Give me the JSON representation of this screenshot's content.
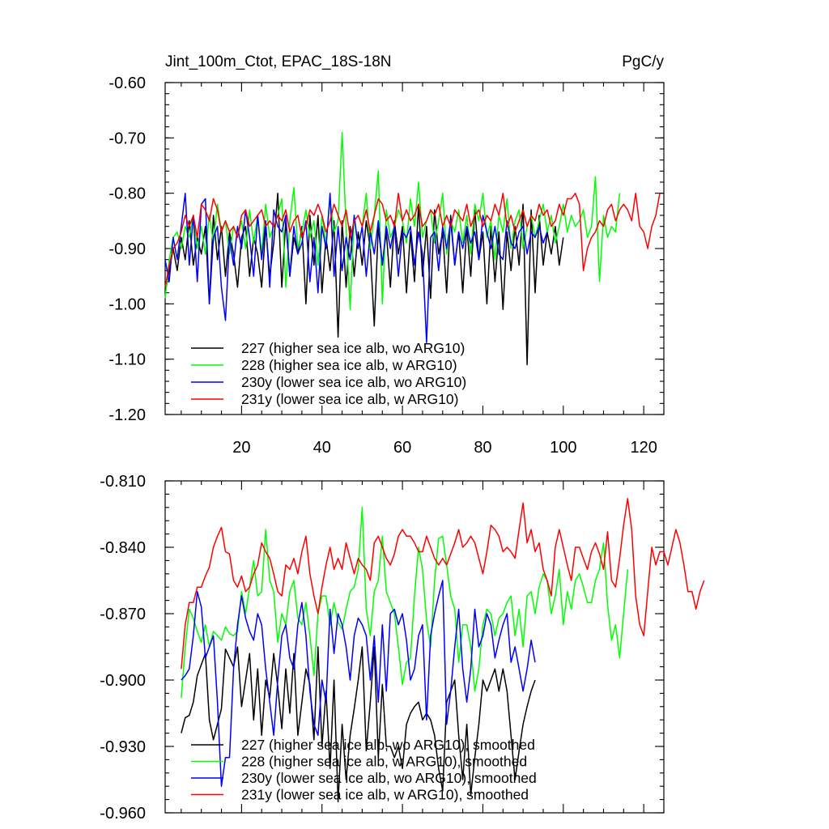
{
  "chart_data": [
    {
      "type": "line",
      "title": "Jint_100m_Ctot, EPAC_18S-18N",
      "units": "PgC/y",
      "xlabel": "",
      "ylabel": "",
      "xlim": [
        1,
        125
      ],
      "ylim": [
        -1.2,
        -0.6
      ],
      "yticks": [
        -0.6,
        -0.7,
        -0.8,
        -0.9,
        -1.0,
        -1.1,
        -1.2
      ],
      "ytick_labels": [
        "-0.60",
        "-0.70",
        "-0.80",
        "-0.90",
        "-1.00",
        "-1.10",
        "-1.20"
      ],
      "xticks": [
        20,
        40,
        60,
        80,
        100,
        120
      ],
      "xtick_labels": [
        "20",
        "40",
        "60",
        "80",
        "100",
        "120"
      ],
      "legend_position": "bottom-left",
      "series": [
        {
          "name": "227 (higher sea ice alb, wo ARG10)",
          "color": "#000000",
          "x_start": 1,
          "values": [
            -0.98,
            -0.94,
            -0.9,
            -0.94,
            -0.88,
            -0.92,
            -0.85,
            -0.93,
            -0.88,
            -0.91,
            -0.86,
            -1.0,
            -0.84,
            -0.92,
            -0.86,
            -0.95,
            -0.87,
            -0.91,
            -0.97,
            -0.88,
            -0.86,
            -0.95,
            -0.88,
            -0.91,
            -0.97,
            -0.86,
            -0.95,
            -0.89,
            -0.8,
            -0.97,
            -0.85,
            -0.95,
            -0.88,
            -0.91,
            -0.86,
            -1.0,
            -0.84,
            -0.93,
            -0.84,
            -0.98,
            -0.88,
            -0.94,
            -0.85,
            -1.06,
            -0.85,
            -0.97,
            -0.86,
            -0.95,
            -0.87,
            -0.93,
            -0.85,
            -0.9,
            -1.04,
            -0.86,
            -0.93,
            -0.87,
            -0.97,
            -0.85,
            -0.91,
            -0.86,
            -0.98,
            -0.87,
            -0.96,
            -0.82,
            -0.95,
            -0.86,
            -0.99,
            -0.83,
            -0.91,
            -0.87,
            -0.98,
            -0.84,
            -0.93,
            -0.87,
            -0.98,
            -0.86,
            -0.95,
            -0.83,
            -0.92,
            -0.87,
            -1.0,
            -0.86,
            -0.96,
            -0.87,
            -1.01,
            -0.87,
            -0.94,
            -0.86,
            -0.93,
            -0.82,
            -1.11,
            -0.83,
            -0.98,
            -0.84,
            -0.93,
            -0.87,
            -0.91,
            -0.86,
            -0.93,
            -0.88
          ]
        },
        {
          "name": "228 (higher sea ice alb, w ARG10)",
          "color": "#00ff00",
          "x_start": 1,
          "values": [
            -0.99,
            -0.92,
            -0.88,
            -0.87,
            -0.9,
            -0.86,
            -0.88,
            -0.84,
            -0.9,
            -0.86,
            -0.91,
            -0.84,
            -0.89,
            -0.82,
            -0.87,
            -0.85,
            -0.91,
            -0.86,
            -0.88,
            -0.85,
            -0.9,
            -0.83,
            -0.89,
            -0.84,
            -0.91,
            -0.82,
            -0.88,
            -0.86,
            -0.84,
            -0.81,
            -0.97,
            -0.85,
            -0.79,
            -0.9,
            -0.87,
            -0.83,
            -0.88,
            -0.85,
            -0.93,
            -0.84,
            -0.89,
            -0.81,
            -0.87,
            -0.85,
            -0.69,
            -0.86,
            -1.01,
            -0.84,
            -0.9,
            -0.86,
            -0.8,
            -0.9,
            -0.84,
            -0.76,
            -1.0,
            -0.83,
            -0.88,
            -0.86,
            -0.83,
            -0.85,
            -0.89,
            -0.81,
            -0.86,
            -0.78,
            -0.88,
            -0.85,
            -0.83,
            -0.89,
            -0.85,
            -0.8,
            -0.91,
            -0.85,
            -0.87,
            -0.83,
            -0.89,
            -0.84,
            -0.91,
            -0.82,
            -0.85,
            -0.8,
            -0.88,
            -0.85,
            -0.92,
            -0.84,
            -0.87,
            -0.81,
            -0.9,
            -0.85,
            -0.83,
            -0.9,
            -0.86,
            -0.84,
            -0.88,
            -0.85,
            -0.82,
            -0.87,
            -0.84,
            -0.89,
            -0.86,
            -0.82,
            -0.87,
            -0.84,
            -0.86,
            -0.85,
            -0.83,
            -0.88,
            -0.86,
            -0.77,
            -0.96,
            -0.84,
            -0.88,
            -0.86,
            -0.87,
            -0.8
          ]
        },
        {
          "name": "230y (lower sea ice alb, wo ARG10)",
          "color": "#0000ff",
          "x_start": 1,
          "values": [
            -0.92,
            -0.96,
            -0.88,
            -0.92,
            -0.86,
            -0.8,
            -0.93,
            -0.84,
            -0.96,
            -0.82,
            -0.81,
            -1.0,
            -0.88,
            -0.86,
            -0.97,
            -1.03,
            -0.88,
            -0.93,
            -0.86,
            -0.9,
            -0.83,
            -0.88,
            -0.95,
            -0.84,
            -0.92,
            -0.85,
            -0.97,
            -0.83,
            -0.86,
            -0.87,
            -0.84,
            -0.95,
            -0.86,
            -0.91,
            -0.89,
            -0.85,
            -0.96,
            -0.88,
            -0.98,
            -0.86,
            -0.9,
            -0.8,
            -0.95,
            -0.86,
            -0.94,
            -0.88,
            -0.92,
            -0.84,
            -0.9,
            -0.86,
            -0.95,
            -0.87,
            -0.91,
            -0.85,
            -0.93,
            -0.86,
            -0.9,
            -0.86,
            -0.95,
            -0.87,
            -0.88,
            -0.86,
            -0.93,
            -0.87,
            -0.91,
            -1.07,
            -0.88,
            -0.87,
            -0.94,
            -0.86,
            -0.9,
            -0.85,
            -0.93,
            -0.87,
            -0.9,
            -0.86,
            -0.89,
            -0.87,
            -0.92,
            -0.84,
            -0.87,
            -0.9,
            -0.86,
            -0.91,
            -0.92,
            -0.85,
            -0.89,
            -0.9,
            -0.87,
            -0.86,
            -0.91,
            -0.87,
            -0.88,
            -0.86,
            -0.89,
            -0.87
          ]
        },
        {
          "name": "231y (lower sea ice alb, w ARG10)",
          "color": "#ff0000",
          "x_start": 1,
          "values": [
            -0.97,
            -0.93,
            -0.9,
            -0.89,
            -0.87,
            -0.84,
            -0.86,
            -0.84,
            -0.88,
            -0.82,
            -0.83,
            -0.85,
            -0.81,
            -0.83,
            -0.87,
            -0.85,
            -0.87,
            -0.86,
            -0.88,
            -0.84,
            -0.83,
            -0.86,
            -0.85,
            -0.84,
            -0.83,
            -0.86,
            -0.85,
            -0.86,
            -0.84,
            -0.85,
            -0.83,
            -0.87,
            -0.85,
            -0.84,
            -0.88,
            -0.86,
            -0.83,
            -0.84,
            -0.82,
            -0.84,
            -0.87,
            -0.85,
            -0.82,
            -0.84,
            -0.86,
            -0.83,
            -0.88,
            -0.85,
            -0.84,
            -0.86,
            -0.83,
            -0.87,
            -0.84,
            -0.81,
            -0.82,
            -0.85,
            -0.84,
            -0.86,
            -0.8,
            -0.85,
            -0.83,
            -0.85,
            -0.84,
            -0.82,
            -0.86,
            -0.85,
            -0.83,
            -0.84,
            -0.82,
            -0.86,
            -0.84,
            -0.86,
            -0.83,
            -0.84,
            -0.85,
            -0.82,
            -0.86,
            -0.84,
            -0.83,
            -0.86,
            -0.84,
            -0.85,
            -0.82,
            -0.84,
            -0.8,
            -0.86,
            -0.84,
            -0.87,
            -0.85,
            -0.83,
            -0.86,
            -0.84,
            -0.85,
            -0.82,
            -0.84,
            -0.83,
            -0.86,
            -0.85,
            -0.82,
            -0.84,
            -0.81,
            -0.81,
            -0.8,
            -0.82,
            -0.94,
            -0.9,
            -0.88,
            -0.87,
            -0.85,
            -0.86,
            -0.83,
            -0.82,
            -0.85,
            -0.83,
            -0.82,
            -0.83,
            -0.85,
            -0.8,
            -0.86,
            -0.87,
            -0.9,
            -0.86,
            -0.84,
            -0.8
          ]
        }
      ]
    },
    {
      "type": "line",
      "title": "",
      "xlabel": "",
      "ylabel": "",
      "xlim": [
        1,
        125
      ],
      "ylim": [
        -0.96,
        -0.81
      ],
      "yticks": [
        -0.81,
        -0.84,
        -0.87,
        -0.9,
        -0.93,
        -0.96
      ],
      "ytick_labels": [
        "-0.810",
        "-0.840",
        "-0.870",
        "-0.900",
        "-0.930",
        "-0.960"
      ],
      "xticks": [
        20,
        40,
        60,
        80,
        100,
        120
      ],
      "xtick_labels": [],
      "legend_position": "bottom-left",
      "series": [
        {
          "name": "227 (higher sea ice alb, wo ARG10), smoothed",
          "color": "#000000",
          "x_start": 5,
          "values": [
            -0.924,
            -0.917,
            -0.916,
            -0.91,
            -0.898,
            -0.893,
            -0.888,
            -0.918,
            -0.927,
            -0.92,
            -0.913,
            -0.886,
            -0.89,
            -0.894,
            -0.885,
            -0.912,
            -0.9,
            -0.888,
            -0.918,
            -0.895,
            -0.925,
            -0.9,
            -0.908,
            -0.888,
            -0.903,
            -0.922,
            -0.895,
            -0.915,
            -0.888,
            -0.925,
            -0.91,
            -0.895,
            -0.902,
            -0.927,
            -0.885,
            -0.93,
            -0.905,
            -0.94,
            -0.9,
            -0.955,
            -0.92,
            -0.945,
            -0.925,
            -0.913,
            -0.9,
            -0.885,
            -0.932,
            -0.91,
            -0.885,
            -0.935,
            -0.902,
            -0.93,
            -0.93,
            -0.935,
            -0.93,
            -0.94,
            -0.92,
            -0.915,
            -0.912,
            -0.91,
            -0.918,
            -0.915,
            -0.918,
            -0.925,
            -0.94,
            -0.95,
            -0.91,
            -0.905,
            -0.9,
            -0.925,
            -0.945,
            -0.92,
            -0.952,
            -0.935,
            -0.92,
            -0.9,
            -0.905,
            -0.9,
            -0.895,
            -0.905,
            -0.895,
            -0.905,
            -0.925,
            -0.945,
            -0.932,
            -0.92,
            -0.912,
            -0.905,
            -0.9
          ]
        },
        {
          "name": "228 (higher sea ice alb, w ARG10), smoothed",
          "color": "#00ff00",
          "x_start": 5,
          "values": [
            -0.908,
            -0.885,
            -0.868,
            -0.872,
            -0.878,
            -0.883,
            -0.875,
            -0.885,
            -0.878,
            -0.88,
            -0.882,
            -0.876,
            -0.879,
            -0.88,
            -0.878,
            -0.86,
            -0.87,
            -0.858,
            -0.846,
            -0.862,
            -0.86,
            -0.832,
            -0.855,
            -0.86,
            -0.883,
            -0.87,
            -0.875,
            -0.86,
            -0.855,
            -0.872,
            -0.875,
            -0.865,
            -0.88,
            -0.898,
            -0.87,
            -0.862,
            -0.862,
            -0.875,
            -0.865,
            -0.874,
            -0.877,
            -0.868,
            -0.86,
            -0.858,
            -0.85,
            -0.822,
            -0.868,
            -0.88,
            -0.86,
            -0.855,
            -0.835,
            -0.86,
            -0.865,
            -0.87,
            -0.885,
            -0.902,
            -0.892,
            -0.89,
            -0.862,
            -0.84,
            -0.85,
            -0.873,
            -0.885,
            -0.855,
            -0.836,
            -0.835,
            -0.848,
            -0.862,
            -0.868,
            -0.892,
            -0.875,
            -0.875,
            -0.885,
            -0.905,
            -0.895,
            -0.875,
            -0.868,
            -0.87,
            -0.88,
            -0.872,
            -0.87,
            -0.865,
            -0.862,
            -0.88,
            -0.868,
            -0.885,
            -0.862,
            -0.86,
            -0.87,
            -0.858,
            -0.852,
            -0.855,
            -0.87,
            -0.862,
            -0.85,
            -0.875,
            -0.86,
            -0.868,
            -0.855,
            -0.852,
            -0.858,
            -0.865,
            -0.865,
            -0.855,
            -0.85,
            -0.838,
            -0.866,
            -0.882,
            -0.875,
            -0.89,
            -0.87,
            -0.85
          ]
        },
        {
          "name": "230y (lower sea ice alb, wo ARG10), smoothed",
          "color": "#0000ff",
          "x_start": 5,
          "values": [
            -0.9,
            -0.898,
            -0.895,
            -0.88,
            -0.86,
            -0.867,
            -0.89,
            -0.885,
            -0.88,
            -0.91,
            -0.948,
            -0.935,
            -0.935,
            -0.895,
            -0.875,
            -0.862,
            -0.872,
            -0.878,
            -0.882,
            -0.87,
            -0.875,
            -0.895,
            -0.91,
            -0.925,
            -0.9,
            -0.88,
            -0.875,
            -0.89,
            -0.895,
            -0.875,
            -0.865,
            -0.88,
            -0.905,
            -0.92,
            -0.925,
            -0.9,
            -0.91,
            -0.868,
            -0.888,
            -0.87,
            -0.875,
            -0.885,
            -0.9,
            -0.88,
            -0.872,
            -0.875,
            -0.88,
            -0.9,
            -0.88,
            -0.91,
            -0.875,
            -0.905,
            -0.87,
            -0.868,
            -0.875,
            -0.87,
            -0.882,
            -0.9,
            -0.895,
            -0.88,
            -0.875,
            -0.918,
            -0.88,
            -0.87,
            -0.862,
            -0.855,
            -0.92,
            -0.905,
            -0.885,
            -0.868,
            -0.895,
            -0.91,
            -0.895,
            -0.868,
            -0.885,
            -0.88,
            -0.87,
            -0.875,
            -0.89,
            -0.882,
            -0.875,
            -0.87,
            -0.892,
            -0.885,
            -0.895,
            -0.905,
            -0.895,
            -0.882,
            -0.892
          ]
        },
        {
          "name": "231y (lower sea ice alb, w ARG10), smoothed",
          "color": "#ff0000",
          "x_start": 5,
          "values": [
            -0.895,
            -0.875,
            -0.865,
            -0.865,
            -0.858,
            -0.858,
            -0.853,
            -0.849,
            -0.84,
            -0.835,
            -0.831,
            -0.842,
            -0.843,
            -0.855,
            -0.858,
            -0.853,
            -0.86,
            -0.858,
            -0.852,
            -0.848,
            -0.838,
            -0.842,
            -0.845,
            -0.852,
            -0.86,
            -0.862,
            -0.848,
            -0.85,
            -0.845,
            -0.852,
            -0.842,
            -0.835,
            -0.852,
            -0.862,
            -0.87,
            -0.858,
            -0.848,
            -0.84,
            -0.85,
            -0.845,
            -0.85,
            -0.838,
            -0.845,
            -0.852,
            -0.845,
            -0.848,
            -0.85,
            -0.855,
            -0.838,
            -0.835,
            -0.84,
            -0.845,
            -0.848,
            -0.843,
            -0.835,
            -0.832,
            -0.835,
            -0.835,
            -0.838,
            -0.842,
            -0.842,
            -0.835,
            -0.84,
            -0.845,
            -0.848,
            -0.845,
            -0.848,
            -0.843,
            -0.838,
            -0.832,
            -0.84,
            -0.838,
            -0.835,
            -0.838,
            -0.845,
            -0.852,
            -0.842,
            -0.83,
            -0.832,
            -0.835,
            -0.842,
            -0.84,
            -0.842,
            -0.845,
            -0.832,
            -0.82,
            -0.838,
            -0.832,
            -0.842,
            -0.838,
            -0.85,
            -0.855,
            -0.862,
            -0.84,
            -0.832,
            -0.84,
            -0.848,
            -0.855,
            -0.84,
            -0.84,
            -0.845,
            -0.85,
            -0.842,
            -0.838,
            -0.843,
            -0.85,
            -0.833,
            -0.855,
            -0.858,
            -0.845,
            -0.83,
            -0.818,
            -0.832,
            -0.862,
            -0.875,
            -0.88,
            -0.86,
            -0.84,
            -0.848,
            -0.842,
            -0.842,
            -0.848,
            -0.84,
            -0.832,
            -0.838,
            -0.848,
            -0.86,
            -0.86,
            -0.868,
            -0.86,
            -0.855
          ]
        }
      ]
    }
  ]
}
